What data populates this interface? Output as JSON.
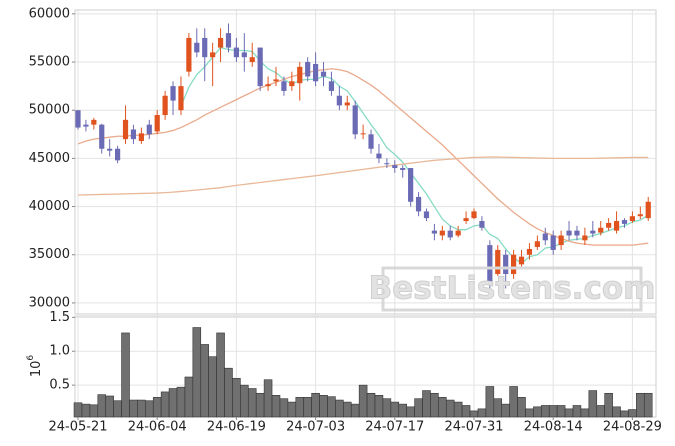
{
  "watermark": "BestListens.com",
  "chart_data": [
    {
      "type": "candlestick",
      "up_color": "#e0531e",
      "down_color": "#6b6bb5",
      "open": [
        50000,
        48500,
        48500,
        48500,
        46000,
        46000,
        47000,
        48000,
        46800,
        48500,
        47800,
        49500,
        52500,
        50000,
        54000,
        57000,
        57500,
        55500,
        56500,
        58000,
        56500,
        56000,
        55000,
        56500,
        52500,
        53000,
        53000,
        52500,
        52800,
        55000,
        54800,
        54000,
        53000,
        51500,
        50500,
        50500,
        47500,
        47500,
        45500,
        44500,
        44300,
        44000,
        44000,
        41000,
        39500,
        37500,
        37000,
        37500,
        37000,
        38500,
        38800,
        38500,
        36000,
        33000,
        35000,
        33000,
        34000,
        35000,
        35800,
        37200,
        37000,
        36000,
        37500,
        37500,
        36500,
        37500,
        37300,
        37800,
        37500,
        38600,
        38500,
        39000,
        38800
      ],
      "high": [
        50000,
        49000,
        49200,
        48600,
        47000,
        46300,
        50500,
        48500,
        48200,
        49000,
        50000,
        52000,
        53000,
        53500,
        58000,
        58500,
        58500,
        57000,
        58500,
        59000,
        57500,
        58000,
        57000,
        56500,
        53500,
        54500,
        53500,
        54000,
        55000,
        55500,
        56000,
        55000,
        54000,
        52500,
        51500,
        51000,
        48500,
        48000,
        46500,
        45000,
        44800,
        44300,
        44000,
        41500,
        39800,
        38200,
        38000,
        38000,
        38000,
        39500,
        39800,
        39000,
        36500,
        36000,
        35500,
        35500,
        35500,
        36200,
        37000,
        37800,
        37500,
        37500,
        38500,
        38000,
        37800,
        38500,
        38500,
        38800,
        39500,
        38800,
        39500,
        40000,
        41000
      ],
      "low": [
        48000,
        47800,
        48000,
        45500,
        45200,
        44500,
        46500,
        46500,
        46500,
        47000,
        47500,
        49000,
        49500,
        49500,
        53500,
        55500,
        53000,
        52500,
        55000,
        56000,
        55000,
        54000,
        54500,
        52000,
        52000,
        52500,
        51500,
        52000,
        51000,
        53000,
        52500,
        52500,
        51500,
        50000,
        50000,
        47000,
        47000,
        45500,
        44500,
        44000,
        43500,
        43000,
        40000,
        39000,
        38500,
        36500,
        36500,
        36500,
        36800,
        38200,
        38700,
        37500,
        31500,
        32800,
        31500,
        32500,
        33500,
        34500,
        35500,
        36000,
        35000,
        35500,
        36500,
        36500,
        36000,
        36800,
        37000,
        37500,
        37200,
        37800,
        38300,
        38700,
        38500
      ],
      "close": [
        48200,
        48300,
        49000,
        46000,
        45800,
        44800,
        49000,
        47000,
        47600,
        47500,
        49500,
        51500,
        51000,
        52500,
        57500,
        56000,
        55500,
        56000,
        57500,
        56500,
        55500,
        55500,
        55500,
        52500,
        52700,
        53200,
        52000,
        53000,
        54500,
        53500,
        53000,
        53500,
        52000,
        50500,
        50800,
        47500,
        47600,
        46000,
        45000,
        44400,
        44000,
        43800,
        40500,
        39500,
        38800,
        37200,
        37500,
        36800,
        37500,
        38800,
        39500,
        37800,
        32000,
        35500,
        33000,
        35000,
        34800,
        35600,
        36400,
        36500,
        35500,
        37000,
        37000,
        37000,
        37000,
        37200,
        37800,
        38300,
        38500,
        38200,
        39000,
        39200,
        40500
      ],
      "series": [
        {
          "color": "#86dcc4",
          "values": [
            null,
            null,
            null,
            null,
            null,
            null,
            null,
            null,
            null,
            null,
            null,
            null,
            null,
            50400,
            52400,
            53700,
            54500,
            55500,
            56500,
            56300,
            56200,
            56200,
            56100,
            55100,
            54300,
            53900,
            53200,
            52700,
            53100,
            53200,
            53200,
            53500,
            53300,
            52500,
            52000,
            50900,
            49700,
            48500,
            47400,
            46100,
            45400,
            44600,
            43500,
            42400,
            41300,
            40000,
            38700,
            38000,
            37600,
            37600,
            38000,
            38100,
            37100,
            36700,
            35600,
            34700,
            34100,
            34800,
            35000,
            35700,
            35800,
            36200,
            36500,
            36600,
            36700,
            37000,
            37200,
            37500,
            37800,
            38000,
            38400,
            38600,
            39100
          ]
        },
        {
          "color": "#eaaa8c",
          "values": [
            46500,
            46800,
            47000,
            47100,
            47200,
            47300,
            47300,
            47400,
            47400,
            47500,
            47600,
            47700,
            47900,
            48200,
            48600,
            49000,
            49500,
            49900,
            50300,
            50700,
            51100,
            51500,
            51900,
            52300,
            52600,
            52900,
            53200,
            53500,
            53700,
            53900,
            54100,
            54200,
            54300,
            54200,
            54000,
            53600,
            53100,
            52600,
            52000,
            51300,
            50600,
            49900,
            49200,
            48500,
            47800,
            47100,
            46400,
            45600,
            44800,
            44000,
            43200,
            42400,
            41600,
            40800,
            40100,
            39400,
            38800,
            38200,
            37700,
            37300,
            37000,
            36700,
            36400,
            36200,
            36100,
            36000,
            36000,
            36000,
            36000,
            36000,
            36000,
            36100,
            36200
          ]
        },
        {
          "color": "#e9b898",
          "values": [
            41200,
            41220,
            41240,
            41260,
            41280,
            41300,
            41320,
            41340,
            41360,
            41380,
            41400,
            41450,
            41500,
            41570,
            41640,
            41720,
            41800,
            41880,
            41960,
            42080,
            42200,
            42300,
            42400,
            42500,
            42600,
            42700,
            42800,
            42900,
            43000,
            43100,
            43200,
            43310,
            43420,
            43530,
            43640,
            43750,
            43860,
            43970,
            44080,
            44190,
            44300,
            44400,
            44500,
            44600,
            44700,
            44800,
            44860,
            44920,
            44980,
            45040,
            45100,
            45120,
            45140,
            45140,
            45120,
            45100,
            45080,
            45060,
            45040,
            45020,
            45000,
            45000,
            45000,
            45000,
            45000,
            45000,
            45020,
            45040,
            45060,
            45080,
            45100,
            45100,
            45100
          ]
        }
      ],
      "ylim": [
        28850,
        60400
      ],
      "yticks": [
        30000,
        35000,
        40000,
        45000,
        50000,
        55000,
        60000
      ],
      "grid": true
    },
    {
      "type": "bar",
      "color": "#707070",
      "categories": [
        "24-05-21",
        null,
        null,
        null,
        null,
        null,
        null,
        null,
        null,
        null,
        "24-06-04",
        null,
        null,
        null,
        null,
        null,
        null,
        null,
        null,
        null,
        "24-06-19",
        null,
        null,
        null,
        null,
        null,
        null,
        null,
        null,
        null,
        "24-07-03",
        null,
        null,
        null,
        null,
        null,
        null,
        null,
        null,
        null,
        "24-07-17",
        null,
        null,
        null,
        null,
        null,
        null,
        null,
        null,
        null,
        "24-07-31",
        null,
        null,
        null,
        null,
        null,
        null,
        null,
        null,
        null,
        "24-08-14",
        null,
        null,
        null,
        null,
        null,
        null,
        null,
        null,
        null,
        "24-08-29",
        null,
        null
      ],
      "values": [
        0.24,
        0.22,
        0.21,
        0.36,
        0.34,
        0.27,
        1.27,
        0.28,
        0.28,
        0.27,
        0.32,
        0.4,
        0.45,
        0.47,
        0.62,
        1.35,
        1.1,
        0.92,
        1.27,
        0.75,
        0.6,
        0.5,
        0.45,
        0.38,
        0.58,
        0.35,
        0.3,
        0.25,
        0.32,
        0.32,
        0.38,
        0.35,
        0.33,
        0.28,
        0.25,
        0.22,
        0.5,
        0.38,
        0.35,
        0.3,
        0.25,
        0.22,
        0.18,
        0.3,
        0.42,
        0.38,
        0.32,
        0.28,
        0.25,
        0.2,
        0.12,
        0.15,
        0.48,
        0.3,
        0.22,
        0.48,
        0.32,
        0.15,
        0.18,
        0.2,
        0.2,
        0.2,
        0.15,
        0.2,
        0.15,
        0.42,
        0.2,
        0.38,
        0.18,
        0.12,
        0.14,
        0.38,
        0.38
      ],
      "ylim": [
        0.03,
        1.52
      ],
      "yticks": [
        0.5,
        {
          "value": 1,
          "label": "1.0"
        },
        1.5
      ],
      "ylabel": {
        "base": "10",
        "exponent": "6"
      },
      "grid": true
    }
  ]
}
